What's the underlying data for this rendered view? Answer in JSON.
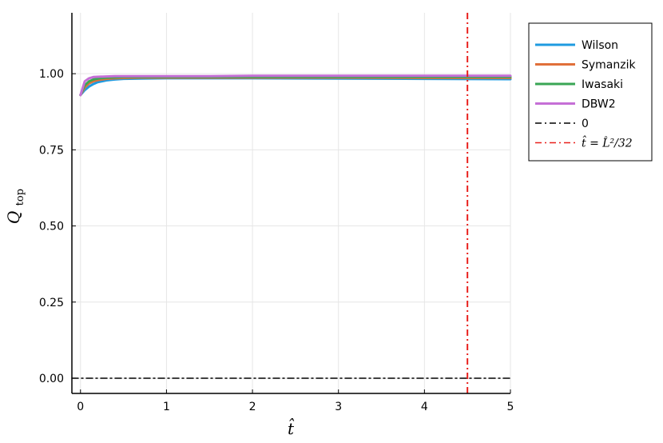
{
  "chart_data": {
    "type": "line",
    "xlabel": "t̂",
    "ylabel_main": "Q",
    "ylabel_sub": "top",
    "xlim": [
      -0.1,
      5.0
    ],
    "ylim": [
      -0.05,
      1.2
    ],
    "xticks": [
      0,
      1,
      2,
      3,
      4,
      5
    ],
    "xtick_labels": [
      "0",
      "1",
      "2",
      "3",
      "4",
      "5"
    ],
    "yticks": [
      0.0,
      0.25,
      0.5,
      0.75,
      1.0
    ],
    "ytick_labels": [
      "0.00",
      "0.25",
      "0.50",
      "0.75",
      "1.00"
    ],
    "grid": true,
    "legend_position": "outside-top-right",
    "series": [
      {
        "name": "Wilson",
        "color": "#1f9be0",
        "style": "solid",
        "x": [
          0,
          0.05,
          0.1,
          0.15,
          0.2,
          0.3,
          0.4,
          0.5,
          0.7,
          1.0,
          1.5,
          2.0,
          3.0,
          4.0,
          5.0
        ],
        "y": [
          0.93,
          0.946,
          0.958,
          0.966,
          0.972,
          0.978,
          0.981,
          0.983,
          0.984,
          0.985,
          0.985,
          0.985,
          0.984,
          0.983,
          0.982
        ]
      },
      {
        "name": "Symanzik",
        "color": "#e0703a",
        "style": "solid",
        "x": [
          0,
          0.05,
          0.1,
          0.15,
          0.2,
          0.3,
          0.4,
          0.5,
          0.7,
          1.0,
          1.5,
          2.0,
          3.0,
          4.0,
          5.0
        ],
        "y": [
          0.93,
          0.955,
          0.968,
          0.975,
          0.979,
          0.983,
          0.985,
          0.986,
          0.987,
          0.987,
          0.987,
          0.987,
          0.987,
          0.986,
          0.986
        ]
      },
      {
        "name": "Iwasaki",
        "color": "#3aa655",
        "style": "solid",
        "x": [
          0,
          0.05,
          0.1,
          0.15,
          0.2,
          0.3,
          0.4,
          0.5,
          0.7,
          1.0,
          1.5,
          2.0,
          3.0,
          4.0,
          5.0
        ],
        "y": [
          0.93,
          0.962,
          0.975,
          0.981,
          0.984,
          0.987,
          0.988,
          0.989,
          0.989,
          0.989,
          0.989,
          0.989,
          0.989,
          0.989,
          0.989
        ]
      },
      {
        "name": "DBW2",
        "color": "#c56fd6",
        "style": "solid",
        "x": [
          0,
          0.05,
          0.1,
          0.15,
          0.2,
          0.3,
          0.4,
          0.5,
          0.7,
          1.0,
          1.5,
          2.0,
          3.0,
          4.0,
          5.0
        ],
        "y": [
          0.93,
          0.975,
          0.985,
          0.989,
          0.99,
          0.991,
          0.992,
          0.992,
          0.992,
          0.992,
          0.992,
          0.993,
          0.993,
          0.993,
          0.993
        ]
      },
      {
        "name": "0",
        "color": "#000000",
        "style": "dashdot",
        "x": [
          -0.1,
          5.0
        ],
        "y": [
          0,
          0
        ]
      }
    ],
    "vline": {
      "label_math": "t̂ = L̂²/32",
      "x": 4.5,
      "color": "#e8201c",
      "style": "dashdot"
    }
  }
}
